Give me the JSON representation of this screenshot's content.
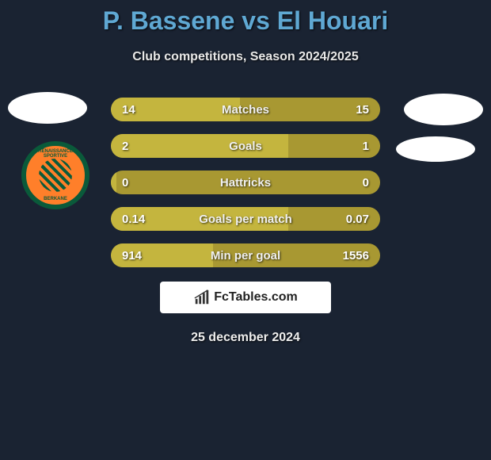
{
  "header": {
    "title": "P. Bassene vs El Houari",
    "subtitle": "Club competitions, Season 2024/2025"
  },
  "club_badge": {
    "top_text": "RENAISSANCE SPORTIVE",
    "bottom_text": "BERKANE",
    "ring_color": "#0a5a3a",
    "fill_color": "#ff7f2a"
  },
  "stats": {
    "bar_bg": "#a89832",
    "bar_fill": "#c4b53e",
    "rows": [
      {
        "left": "14",
        "label": "Matches",
        "right": "15",
        "fill_pct": 48
      },
      {
        "left": "2",
        "label": "Goals",
        "right": "1",
        "fill_pct": 66
      },
      {
        "left": "0",
        "label": "Hattricks",
        "right": "0",
        "fill_pct": 2
      },
      {
        "left": "0.14",
        "label": "Goals per match",
        "right": "0.07",
        "fill_pct": 66
      },
      {
        "left": "914",
        "label": "Min per goal",
        "right": "1556",
        "fill_pct": 38
      }
    ]
  },
  "branding": {
    "label": "FcTables.com"
  },
  "date": "25 december 2024",
  "colors": {
    "background": "#1a2332",
    "title": "#5fa8d3"
  }
}
